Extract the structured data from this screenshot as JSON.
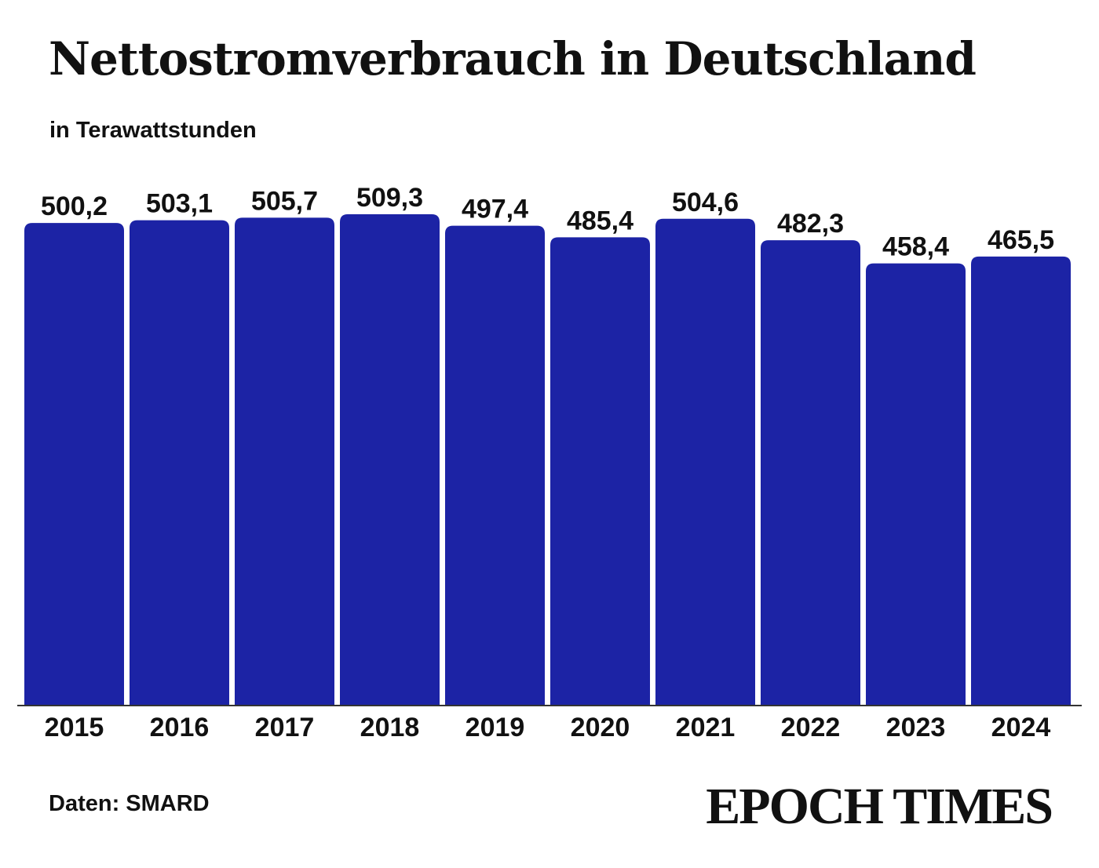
{
  "title": "Nettostromverbrauch in Deutschland",
  "subtitle": "in Terawattstunden",
  "source": "Daten: SMARD",
  "logo": "EPOCH TIMES",
  "colors": {
    "bar": "#1c23a5",
    "text": "#111111",
    "background": "#ffffff"
  },
  "chart_data": {
    "type": "bar",
    "title": "Nettostromverbrauch in Deutschland",
    "subtitle": "in Terawattstunden",
    "categories": [
      "2015",
      "2016",
      "2017",
      "2018",
      "2019",
      "2020",
      "2021",
      "2022",
      "2023",
      "2024"
    ],
    "values": [
      500.2,
      503.1,
      505.7,
      509.3,
      497.4,
      485.4,
      504.6,
      482.3,
      458.4,
      465.5
    ],
    "value_labels": [
      "500,2",
      "503,1",
      "505,7",
      "509,3",
      "497,4",
      "485,4",
      "504,6",
      "482,3",
      "458,4",
      "465,5"
    ],
    "ylim": [
      0,
      509.3
    ],
    "grid": false,
    "legend": "none"
  }
}
